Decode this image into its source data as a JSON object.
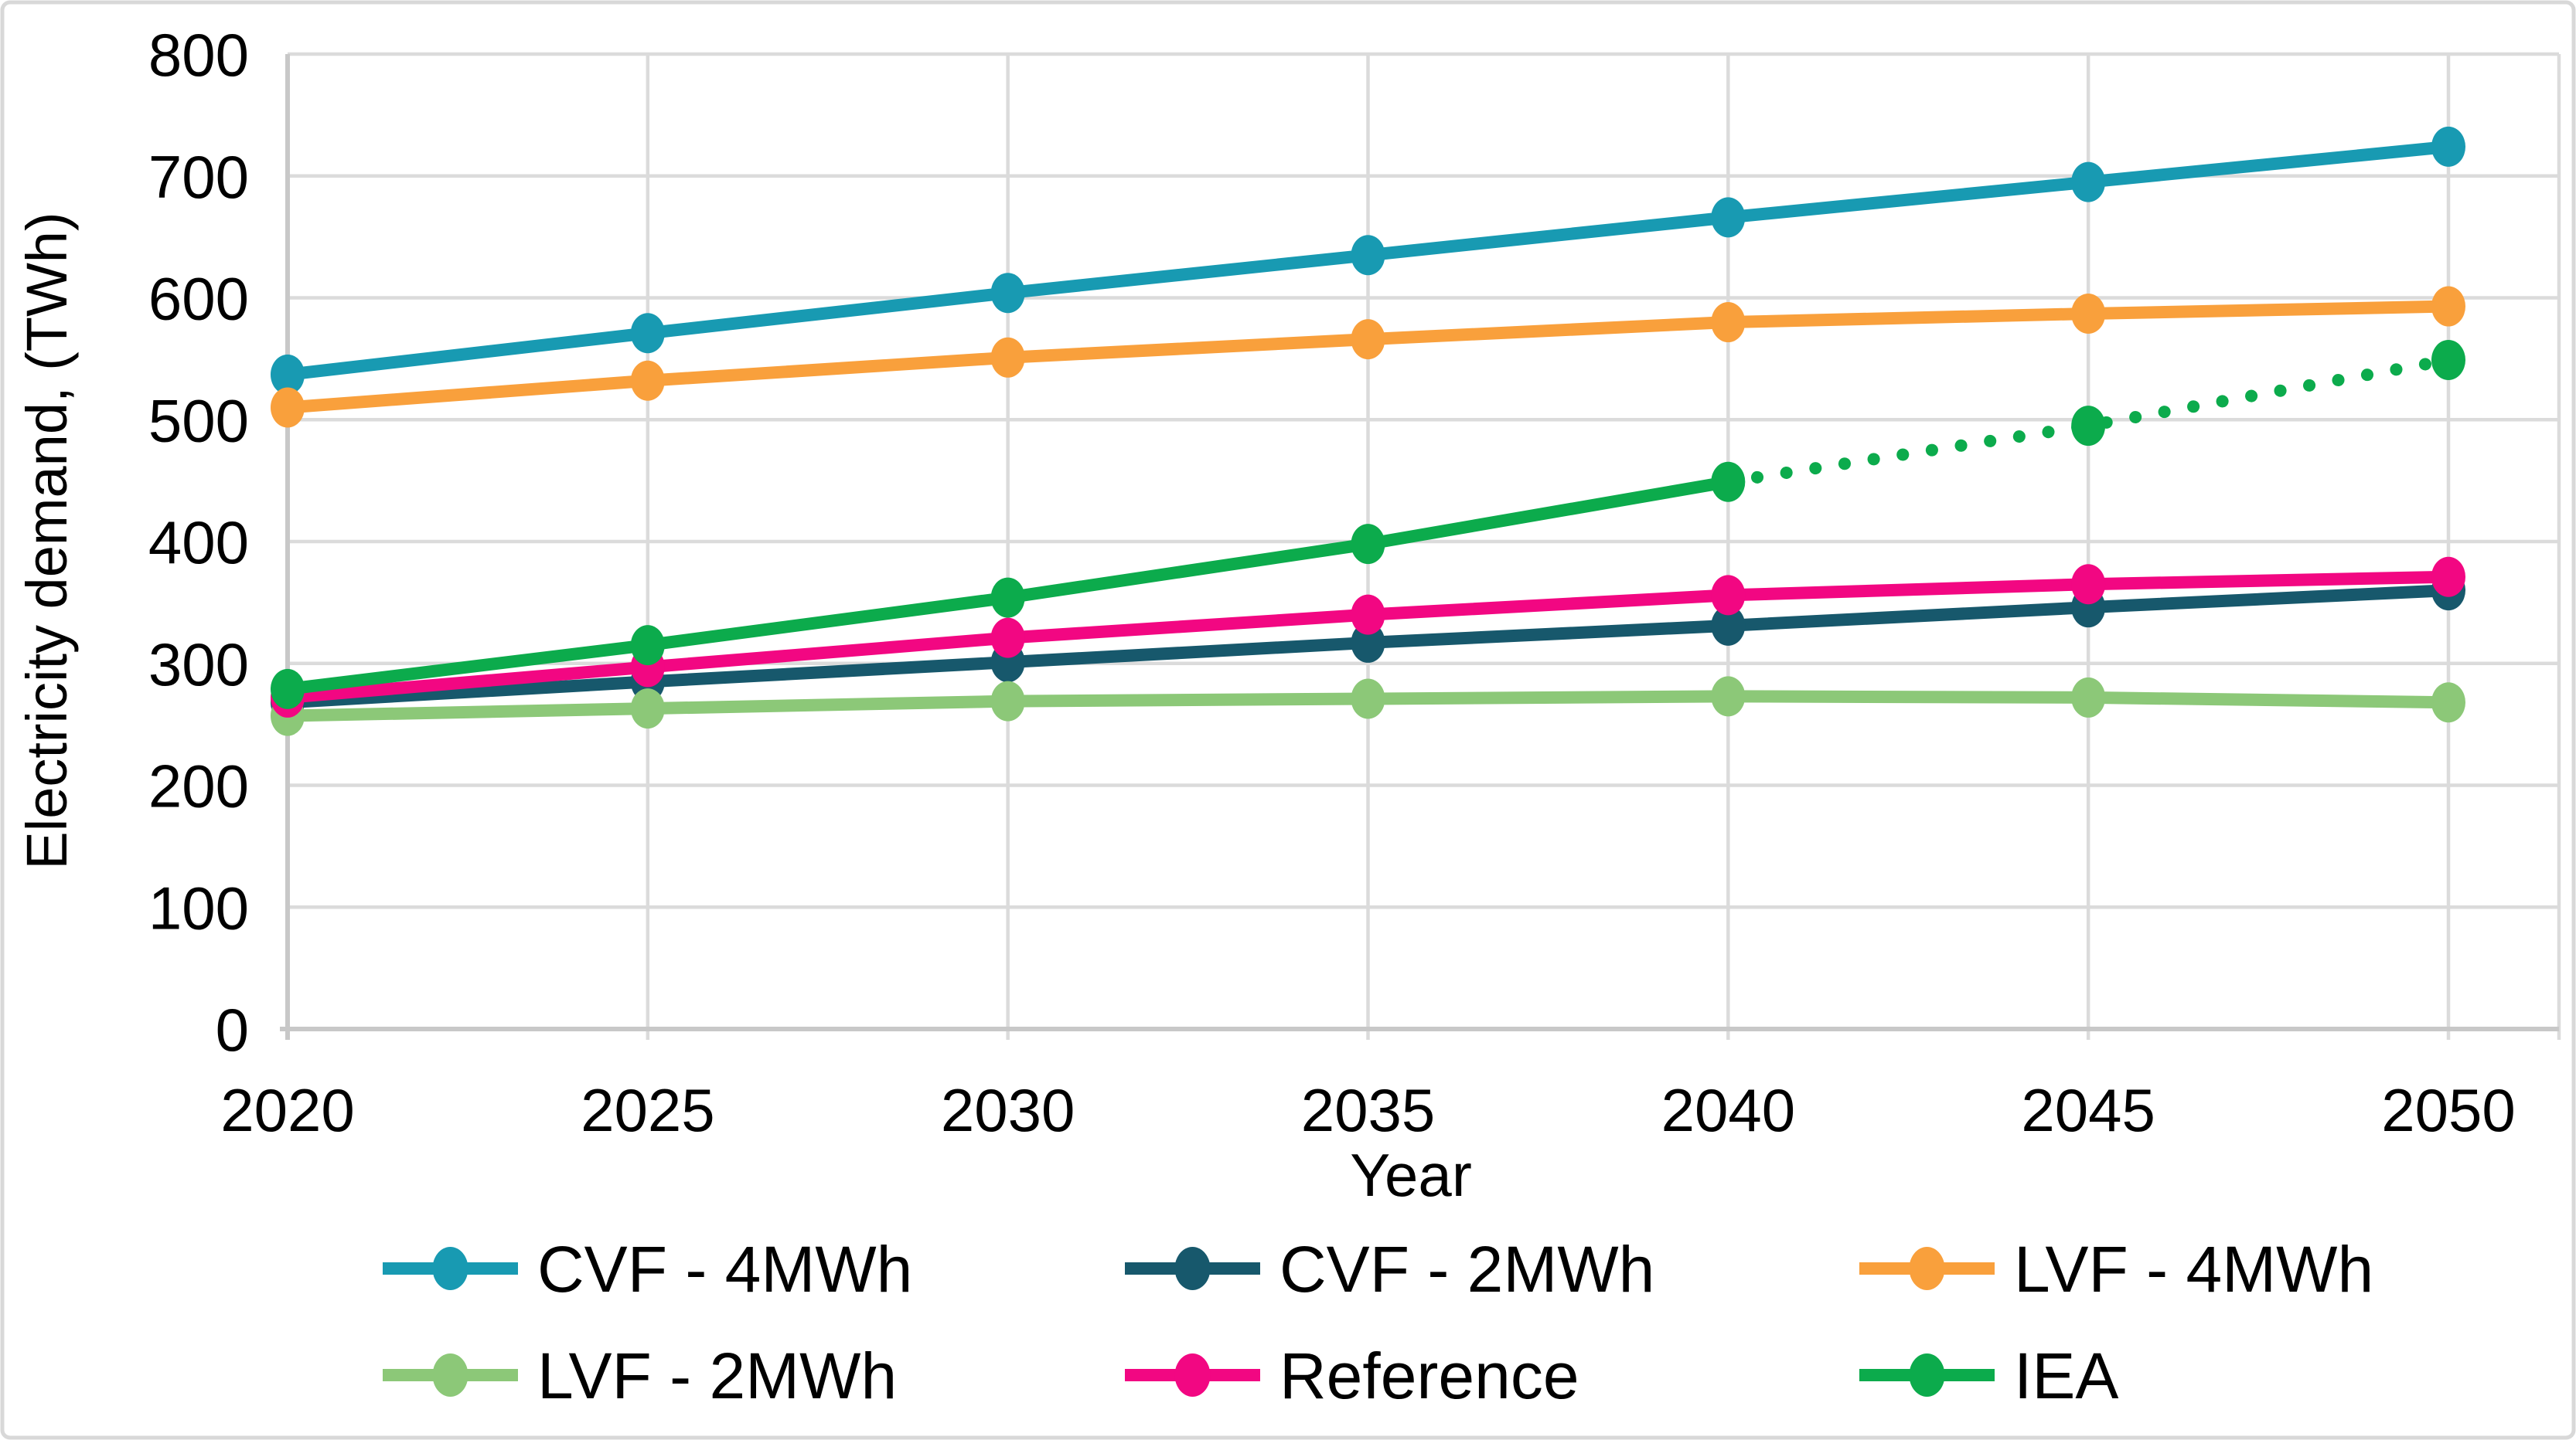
{
  "figure": {
    "background": "#FFFFFF",
    "border_color": "#D8D8D8"
  },
  "chart_data": {
    "type": "line",
    "title": "",
    "xlabel": "Year",
    "ylabel": "Electricity demand, (TWh)",
    "x_categories": [
      "2020",
      "2025",
      "2030",
      "2035",
      "2040",
      "2045",
      "2050"
    ],
    "ylim": [
      0,
      800
    ],
    "yticks": [
      0,
      100,
      200,
      300,
      400,
      500,
      600,
      700,
      800
    ],
    "grid": true,
    "grid_color": "#DBDBDB",
    "axis_color": "#C8C8C8",
    "legend_position": "bottom",
    "series": [
      {
        "name": "CVF - 4MWh",
        "color": "#189AB2",
        "style": "solid",
        "values": [
          537,
          571,
          604,
          635,
          666,
          695,
          724
        ]
      },
      {
        "name": "CVF - 2MWh",
        "color": "#17586C",
        "style": "solid",
        "values": [
          268,
          285,
          301,
          317,
          331,
          346,
          360
        ]
      },
      {
        "name": "LVF - 4MWh",
        "color": "#F9A03C",
        "style": "solid",
        "values": [
          510,
          532,
          551,
          566,
          580,
          587,
          593
        ]
      },
      {
        "name": "LVF - 2MWh",
        "color": "#8CC878",
        "style": "solid",
        "values": [
          257,
          263,
          269,
          271,
          273,
          272,
          268
        ]
      },
      {
        "name": "Reference",
        "color": "#F20782",
        "style": "solid",
        "values": [
          272,
          297,
          321,
          340,
          356,
          365,
          371
        ]
      },
      {
        "name": "IEA",
        "color": "#0CAB4C",
        "style": "solid_then_dotted",
        "dotted_from_index": 4,
        "values": [
          279,
          315,
          354,
          398,
          449,
          495,
          549
        ]
      }
    ],
    "legend_rows": [
      [
        "CVF - 4MWh",
        "CVF - 2MWh",
        "LVF - 4MWh"
      ],
      [
        "LVF - 2MWh",
        "Reference",
        "IEA"
      ]
    ]
  }
}
